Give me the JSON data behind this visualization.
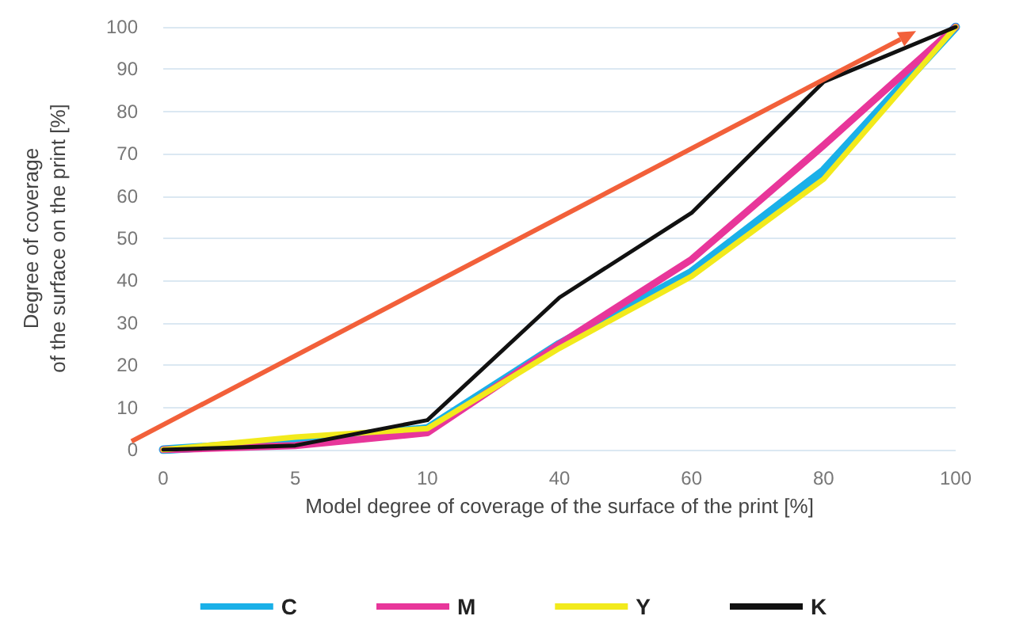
{
  "chart_data": {
    "type": "line",
    "xlabel": "Model degree of coverage of the surface of the print [%]",
    "ylabel": "Degree of coverage\nof the surface on the print [%]",
    "categories": [
      "0",
      "5",
      "10",
      "40",
      "60",
      "80",
      "100"
    ],
    "series": [
      {
        "name": "C",
        "color": "#1ab0e8",
        "values": [
          0,
          2,
          5,
          25,
          42,
          66,
          100
        ]
      },
      {
        "name": "M",
        "color": "#e8369a",
        "values": [
          0,
          1,
          4,
          25,
          45,
          72,
          100
        ]
      },
      {
        "name": "Y",
        "color": "#f2ea1c",
        "values": [
          0,
          3,
          5,
          24,
          41,
          64,
          100
        ]
      },
      {
        "name": "K",
        "color": "#111111",
        "values": [
          0,
          1,
          7,
          36,
          56,
          87,
          100
        ]
      }
    ],
    "ylim": [
      0,
      100
    ],
    "yticks": [
      0,
      10,
      20,
      30,
      40,
      50,
      60,
      70,
      80,
      90,
      100
    ],
    "grid": "y",
    "legend": "bottom",
    "marker": "none",
    "line_style": "solid"
  }
}
